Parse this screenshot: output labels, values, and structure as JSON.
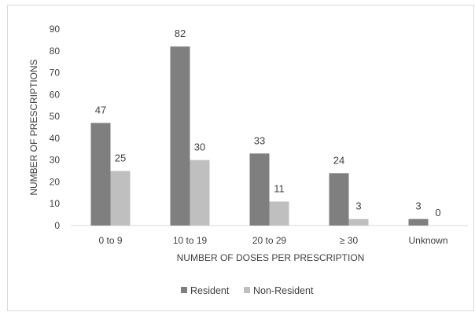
{
  "chart_data": {
    "type": "bar",
    "title": "",
    "xlabel": "NUMBER OF DOSES PER PRESCRIPTION",
    "ylabel": "NUMBER OF PRESCRIPTIONS",
    "categories": [
      "0 to 9",
      "10 to 19",
      "20 to 29",
      "≥ 30",
      "Unknown"
    ],
    "series": [
      {
        "name": "Resident",
        "values": [
          47,
          82,
          33,
          24,
          3
        ],
        "color": "#7f7f7f"
      },
      {
        "name": "Non-Resident",
        "values": [
          25,
          30,
          11,
          3,
          0
        ],
        "color": "#bfbfbf"
      }
    ],
    "ylim": [
      0,
      90
    ],
    "yticks": [
      0,
      10,
      20,
      30,
      40,
      50,
      60,
      70,
      80,
      90
    ],
    "grid": false,
    "legend_position": "bottom"
  }
}
